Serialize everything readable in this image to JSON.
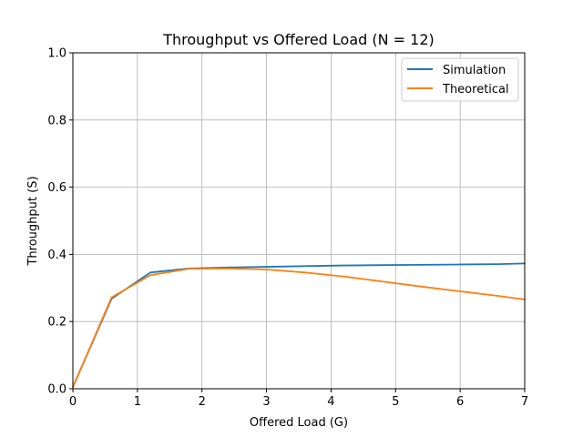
{
  "chart_data": {
    "type": "line",
    "title": "Throughput vs Offered Load (N = 12)",
    "xlabel": "Offered Load (G)",
    "ylabel": "Throughput (S)",
    "xlim": [
      0,
      7
    ],
    "ylim": [
      0,
      1.0
    ],
    "xticks": [
      "0",
      "1",
      "2",
      "3",
      "4",
      "5",
      "6",
      "7"
    ],
    "yticks": [
      "0.0",
      "0.2",
      "0.4",
      "0.6",
      "0.8",
      "1.0"
    ],
    "grid": true,
    "legend_position": "top-right",
    "series": [
      {
        "name": "Simulation",
        "color": "#1f77b4",
        "x": [
          0.0,
          0.6,
          1.2,
          1.8,
          2.4,
          3.0,
          3.6,
          4.2,
          4.8,
          5.4,
          6.0,
          6.6,
          7.0
        ],
        "y": [
          0.005,
          0.268,
          0.346,
          0.358,
          0.361,
          0.363,
          0.365,
          0.367,
          0.368,
          0.369,
          0.37,
          0.371,
          0.373
        ]
      },
      {
        "name": "Theoretical",
        "color": "#ff7f0e",
        "x": [
          0.0,
          0.6,
          1.2,
          1.8,
          2.4,
          3.0,
          3.6,
          4.2,
          4.8,
          5.4,
          6.0,
          6.6,
          7.0
        ],
        "y": [
          0.005,
          0.272,
          0.338,
          0.357,
          0.358,
          0.355,
          0.346,
          0.334,
          0.319,
          0.304,
          0.29,
          0.276,
          0.266
        ]
      }
    ]
  }
}
